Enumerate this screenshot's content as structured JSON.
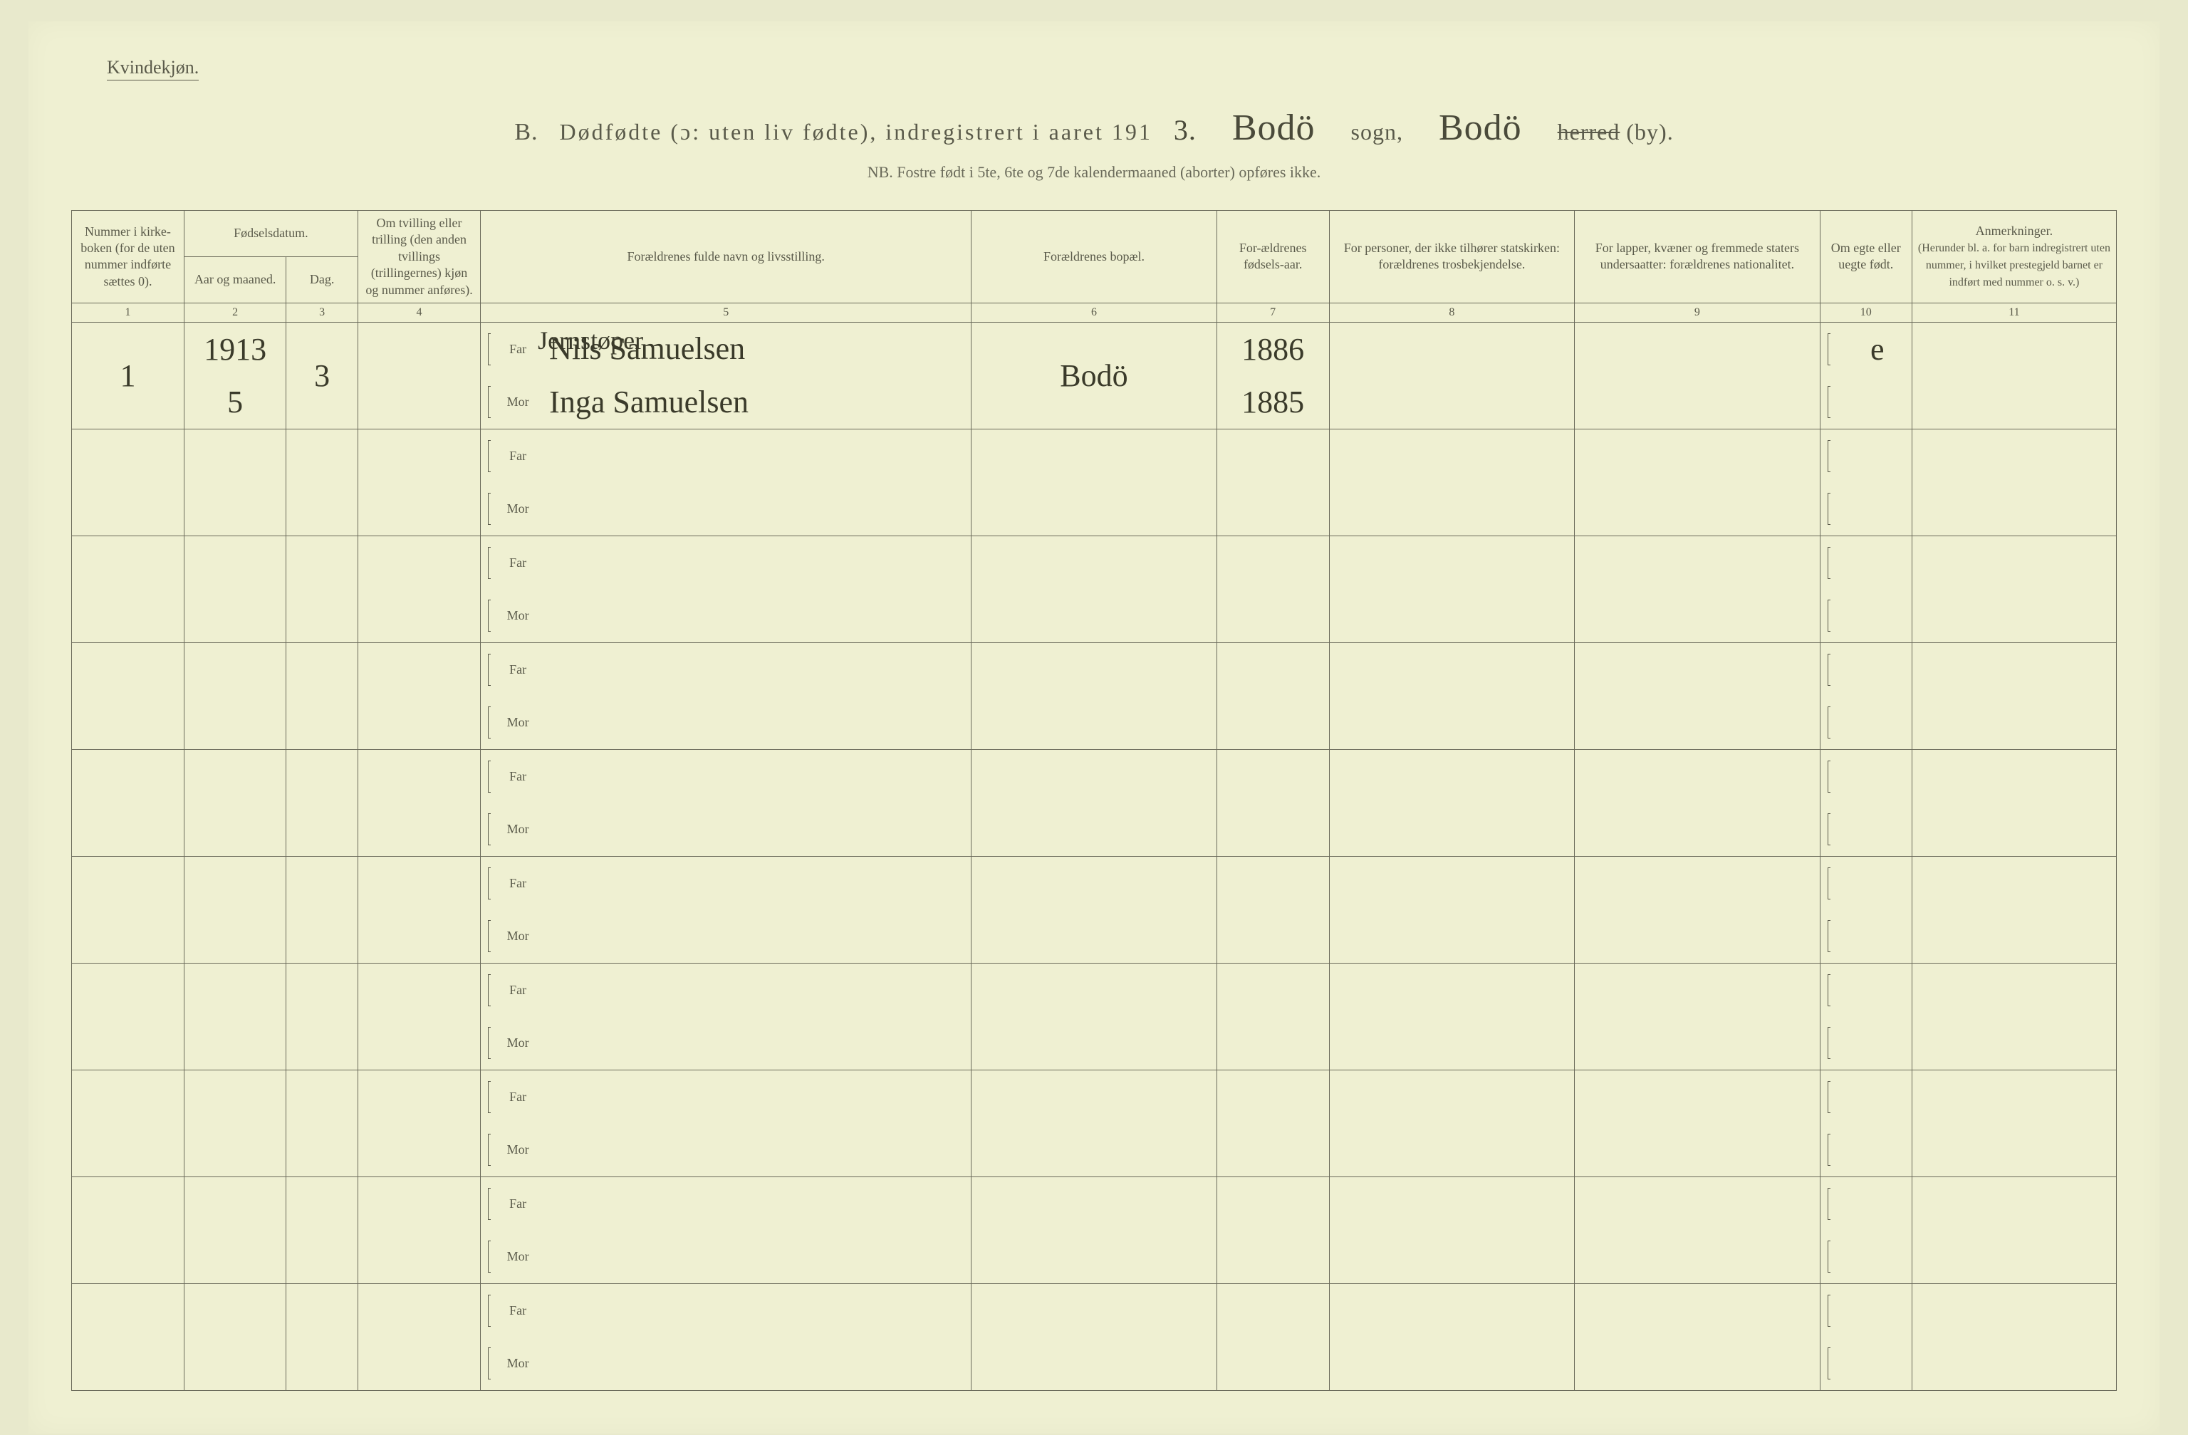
{
  "colors": {
    "page_bg": "#eff0d2",
    "outer_bg": "#e8e9cc",
    "border": "#6a6a5a",
    "text": "#5a5a4a",
    "ink": "#3a3a2a"
  },
  "fonts": {
    "printed": "Georgia, Times New Roman, serif",
    "handwritten": "Brush Script MT, Segoe Script, cursive",
    "title_size_pt": 32,
    "subtitle_size_pt": 22,
    "header_size_pt": 18,
    "handwritten_size_pt": 44
  },
  "header": {
    "corner_label": "Kvindekjøn.",
    "title_prefix": "B.",
    "title_main": "Dødfødte (ɔ: uten liv fødte), indregistrert i aaret 191",
    "year_suffix_hw": "3.",
    "sogn_hw": "Bodö",
    "sogn_label": "sogn,",
    "herred_hw": "Bodö",
    "herred_label_struck": "herred",
    "by_label": "(by).",
    "subtitle": "NB.  Fostre født i 5te, 6te og 7de kalendermaaned (aborter) opføres ikke."
  },
  "columns": {
    "c1": "Nummer i kirke-boken (for de uten nummer indførte sættes 0).",
    "c2_group": "Fødselsdatum.",
    "c2a": "Aar og maaned.",
    "c2b": "Dag.",
    "c3": "Om tvilling eller trilling (den anden tvillings (trillingernes) kjøn og nummer anføres).",
    "c4": "Forældrenes fulde navn og livsstilling.",
    "c5": "Forældrenes bopæl.",
    "c6": "For-ældrenes fødsels-aar.",
    "c7": "For personer, der ikke tilhører statskirken: forældrenes trosbekjendelse.",
    "c8": "For lapper, kvæner og fremmede staters undersaatter: forældrenes nationalitet.",
    "c9": "Om egte eller uegte født.",
    "c10_title": "Anmerkninger.",
    "c10_sub": "(Herunder bl. a. for barn indregistrert uten nummer, i hvilket prestegjeld barnet er indført med nummer o. s. v.)",
    "far_label": "Far",
    "mor_label": "Mor",
    "numbers": [
      "1",
      "2",
      "3",
      "4",
      "5",
      "6",
      "7",
      "8",
      "9",
      "10",
      "11"
    ]
  },
  "column_widths_pct": [
    5.5,
    5,
    3.5,
    6,
    24,
    12,
    5.5,
    12,
    12,
    4.5,
    10
  ],
  "rows": [
    {
      "num": "1",
      "year_month": "1913",
      "month": "5",
      "day": "3",
      "twin": "",
      "occupation": "Jernstøper",
      "far_name": "Nils Samuelsen",
      "mor_name": "Inga Samuelsen",
      "residence": "Bodö",
      "far_year": "1886",
      "mor_year": "1885",
      "religion": "",
      "nationality": "",
      "legit": "e",
      "notes": ""
    },
    {},
    {},
    {},
    {},
    {},
    {},
    {},
    {},
    {}
  ]
}
